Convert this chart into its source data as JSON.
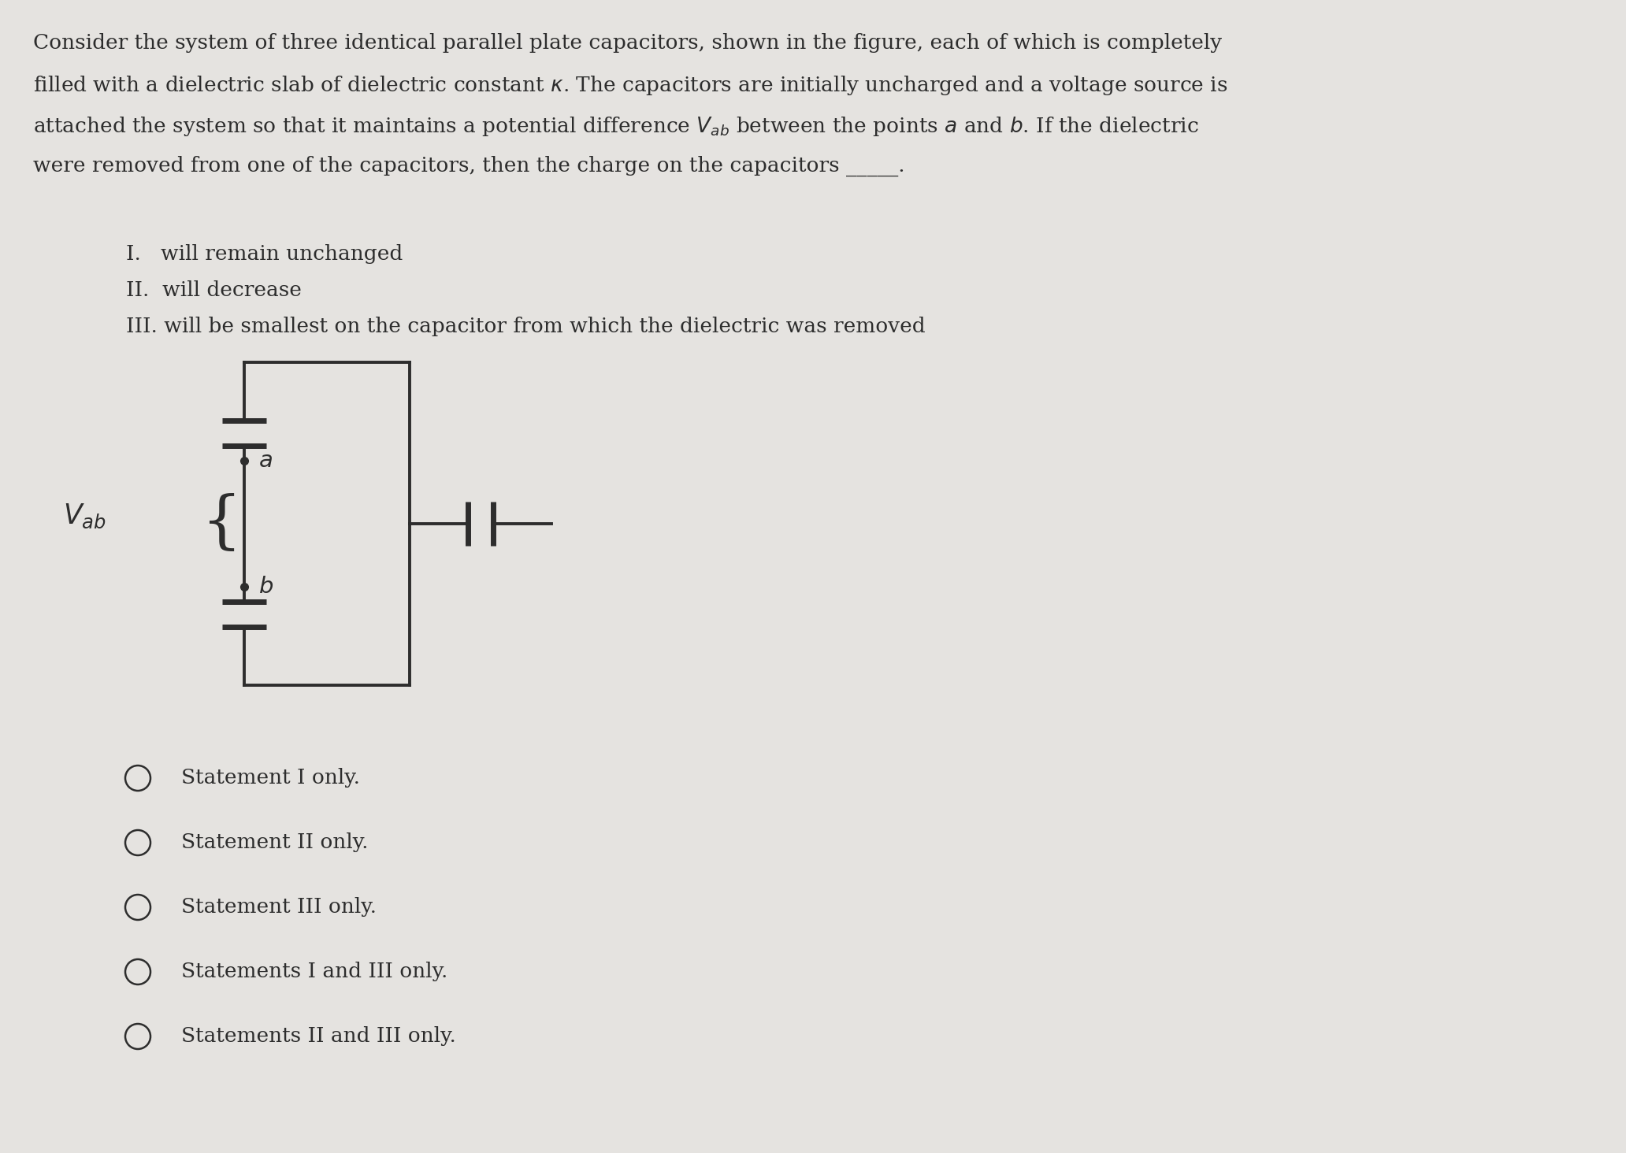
{
  "bg_color": "#e5e3e0",
  "text_color": "#2d2d2d",
  "font_size_para": 19,
  "font_size_stmt": 19,
  "font_size_opt": 19,
  "para_lines": [
    "Consider the system of three identical parallel plate capacitors, shown in the figure, each of which is completely",
    "filled with a dielectric slab of dielectric constant $\\kappa$. The capacitors are initially uncharged and a voltage source is",
    "attached the system so that it maintains a potential difference $V_{ab}$ between the points $a$ and $b$. If the dielectric",
    "were removed from one of the capacitors, then the charge on the capacitors _____."
  ],
  "statements": [
    "I.   will remain unchanged",
    "II.  will decrease",
    "III. will be smallest on the capacitor from which the dielectric was removed"
  ],
  "options": [
    "Statement I only.",
    "Statement II only.",
    "Statement III only.",
    "Statements I and III only.",
    "Statements II and III only."
  ]
}
